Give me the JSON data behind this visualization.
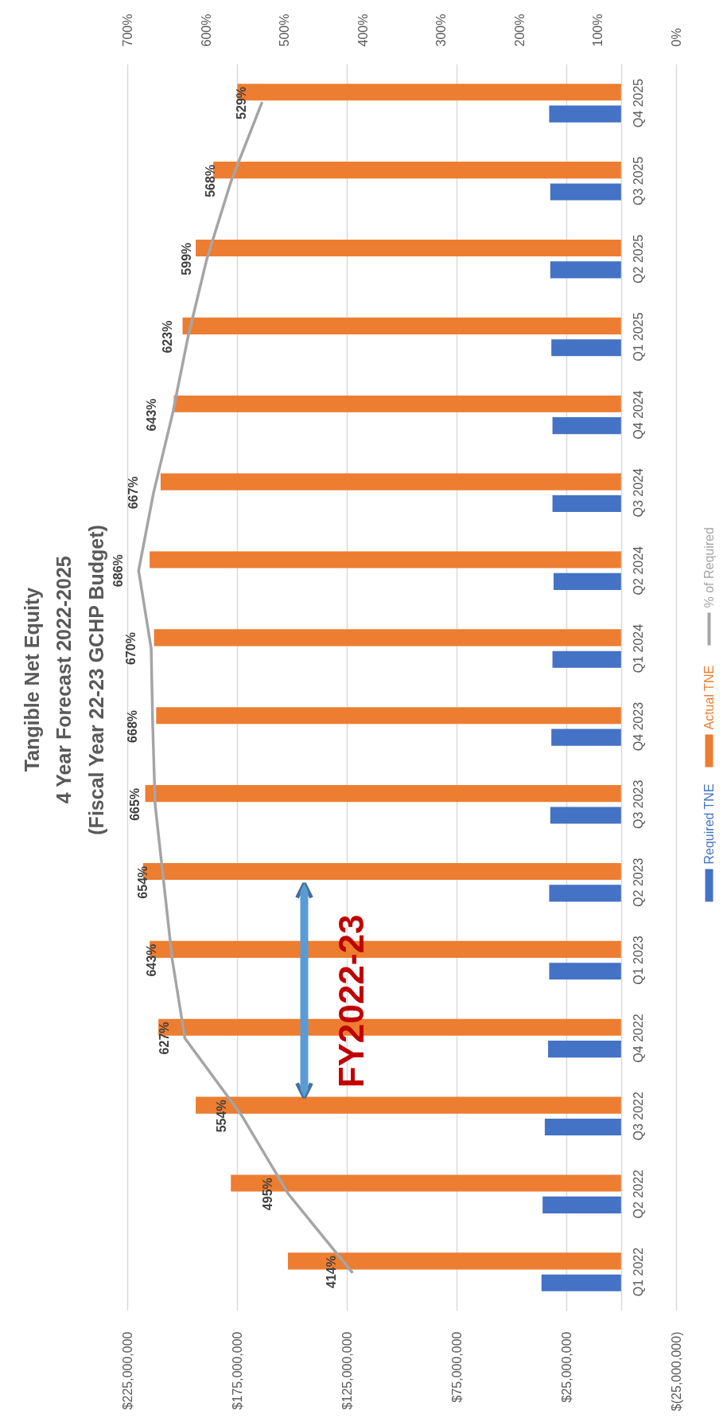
{
  "chart_data": {
    "type": "bar",
    "orientation": "horizontal",
    "title": "Tangible Net Equity\n4 Year Forecast 2022-2025\n(Fiscal Year 22-23 GCHP Budget)",
    "categories": [
      "Q4 2025",
      "Q3 2025",
      "Q2 2025",
      "Q1 2025",
      "Q4 2024",
      "Q3 2024",
      "Q2 2024",
      "Q1 2024",
      "Q4 2023",
      "Q3 2023",
      "Q2 2023",
      "Q1 2023",
      "Q4 2022",
      "Q3 2022",
      "Q2 2022",
      "Q1 2022"
    ],
    "series": [
      {
        "name": "Required TNE",
        "color": "#4472c4",
        "values": [
          33000000,
          32500000,
          32500000,
          32000000,
          31500000,
          31500000,
          31000000,
          31500000,
          32000000,
          32500000,
          33000000,
          33000000,
          33500000,
          35000000,
          36000000,
          36500000
        ]
      },
      {
        "name": "Actual TNE",
        "color": "#ed7d31",
        "values": [
          175000000,
          186000000,
          194000000,
          200000000,
          204000000,
          210000000,
          215000000,
          213000000,
          212000000,
          217000000,
          218000000,
          215000000,
          211000000,
          194000000,
          178000000,
          152000000
        ]
      },
      {
        "name": "% of Required",
        "type": "line",
        "axis": "x2",
        "color": "#a5a5a5",
        "values": [
          529,
          568,
          599,
          623,
          643,
          667,
          686,
          670,
          668,
          665,
          654,
          643,
          627,
          554,
          495,
          414
        ],
        "value_labels": [
          "529%",
          "568%",
          "599%",
          "623%",
          "643%",
          "667%",
          "686%",
          "670%",
          "668%",
          "665%",
          "654%",
          "643%",
          "627%",
          "554%",
          "495%",
          "414%"
        ]
      }
    ],
    "xlim": [
      225000000,
      -25000000
    ],
    "xticks": [
      {
        "value": 225000000,
        "label": "$225,000,000"
      },
      {
        "value": 175000000,
        "label": "$175,000,000"
      },
      {
        "value": 125000000,
        "label": "$125,000,000"
      },
      {
        "value": 75000000,
        "label": "$75,000,000"
      },
      {
        "value": 25000000,
        "label": "$25,000,000"
      },
      {
        "value": -25000000,
        "label": "$(25,000,000)"
      }
    ],
    "x2lim": [
      700,
      0
    ],
    "x2ticks": [
      {
        "value": 700,
        "label": "700%"
      },
      {
        "value": 600,
        "label": "600%"
      },
      {
        "value": 500,
        "label": "500%"
      },
      {
        "value": 400,
        "label": "400%"
      },
      {
        "value": 300,
        "label": "300%"
      },
      {
        "value": 200,
        "label": "200%"
      },
      {
        "value": 100,
        "label": "100%"
      },
      {
        "value": 0,
        "label": "0%"
      }
    ],
    "grid": "x",
    "legend": "right",
    "annotations": [
      "FY2022-23"
    ]
  }
}
